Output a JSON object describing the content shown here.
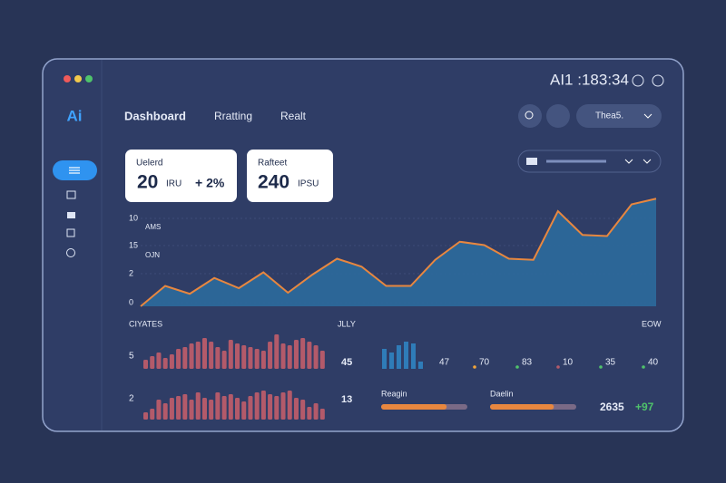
{
  "window": {
    "clock": "AI1 :183:34"
  },
  "sidebar": {
    "logo": "Ai"
  },
  "nav": {
    "items": [
      "Dashboard",
      "Rratting",
      "Realt"
    ]
  },
  "search": {
    "label": "Thea5."
  },
  "cards": [
    {
      "title": "Uelerd",
      "value": "20",
      "unit": "IRU",
      "change": "+ 2%"
    },
    {
      "title": "Rafteet",
      "value": "240",
      "unit": "IPSU"
    }
  ],
  "area_chart": {
    "type": "area",
    "color": "#2c6a9c",
    "line_color": "#e8873f",
    "y_labels": [
      "10",
      "15",
      "2",
      "0"
    ],
    "side_labels": [
      "AMS",
      "OJN"
    ],
    "ylim": [
      0,
      100
    ],
    "values": [
      0,
      18,
      11,
      25,
      16,
      30,
      12,
      28,
      42,
      35,
      18,
      18,
      41,
      57,
      54,
      42,
      41,
      84,
      63,
      62,
      90,
      95
    ]
  },
  "bar_panel": {
    "title": "CIYATES",
    "mid_label": "JLLY",
    "right_label": "EOW",
    "color": "#b35a6a",
    "ylim": [
      0,
      40
    ],
    "rows": [
      {
        "label": "5",
        "total": "45",
        "values": [
          10,
          14,
          18,
          12,
          16,
          22,
          24,
          28,
          30,
          34,
          30,
          24,
          20,
          32,
          28,
          26,
          24,
          22,
          20,
          30,
          38,
          28,
          26,
          32,
          34,
          30,
          26,
          20
        ]
      },
      {
        "label": "2",
        "total": "13",
        "values": [
          8,
          12,
          22,
          18,
          24,
          26,
          28,
          22,
          30,
          24,
          22,
          30,
          26,
          28,
          24,
          20,
          26,
          30,
          32,
          28,
          26,
          30,
          32,
          24,
          22,
          14,
          18,
          12
        ]
      }
    ]
  },
  "mini_bars": {
    "color": "#2f7cb8",
    "ylim": [
      0,
      40
    ],
    "values": [
      22,
      18,
      26,
      30,
      28,
      8
    ]
  },
  "stats": [
    "47",
    "70",
    "83",
    "10",
    "35",
    "40"
  ],
  "progress": [
    {
      "label": "Reagin",
      "value": 76
    },
    {
      "label": "Daelin",
      "value": 74
    }
  ],
  "total": {
    "value": "2635",
    "change": "+97"
  }
}
